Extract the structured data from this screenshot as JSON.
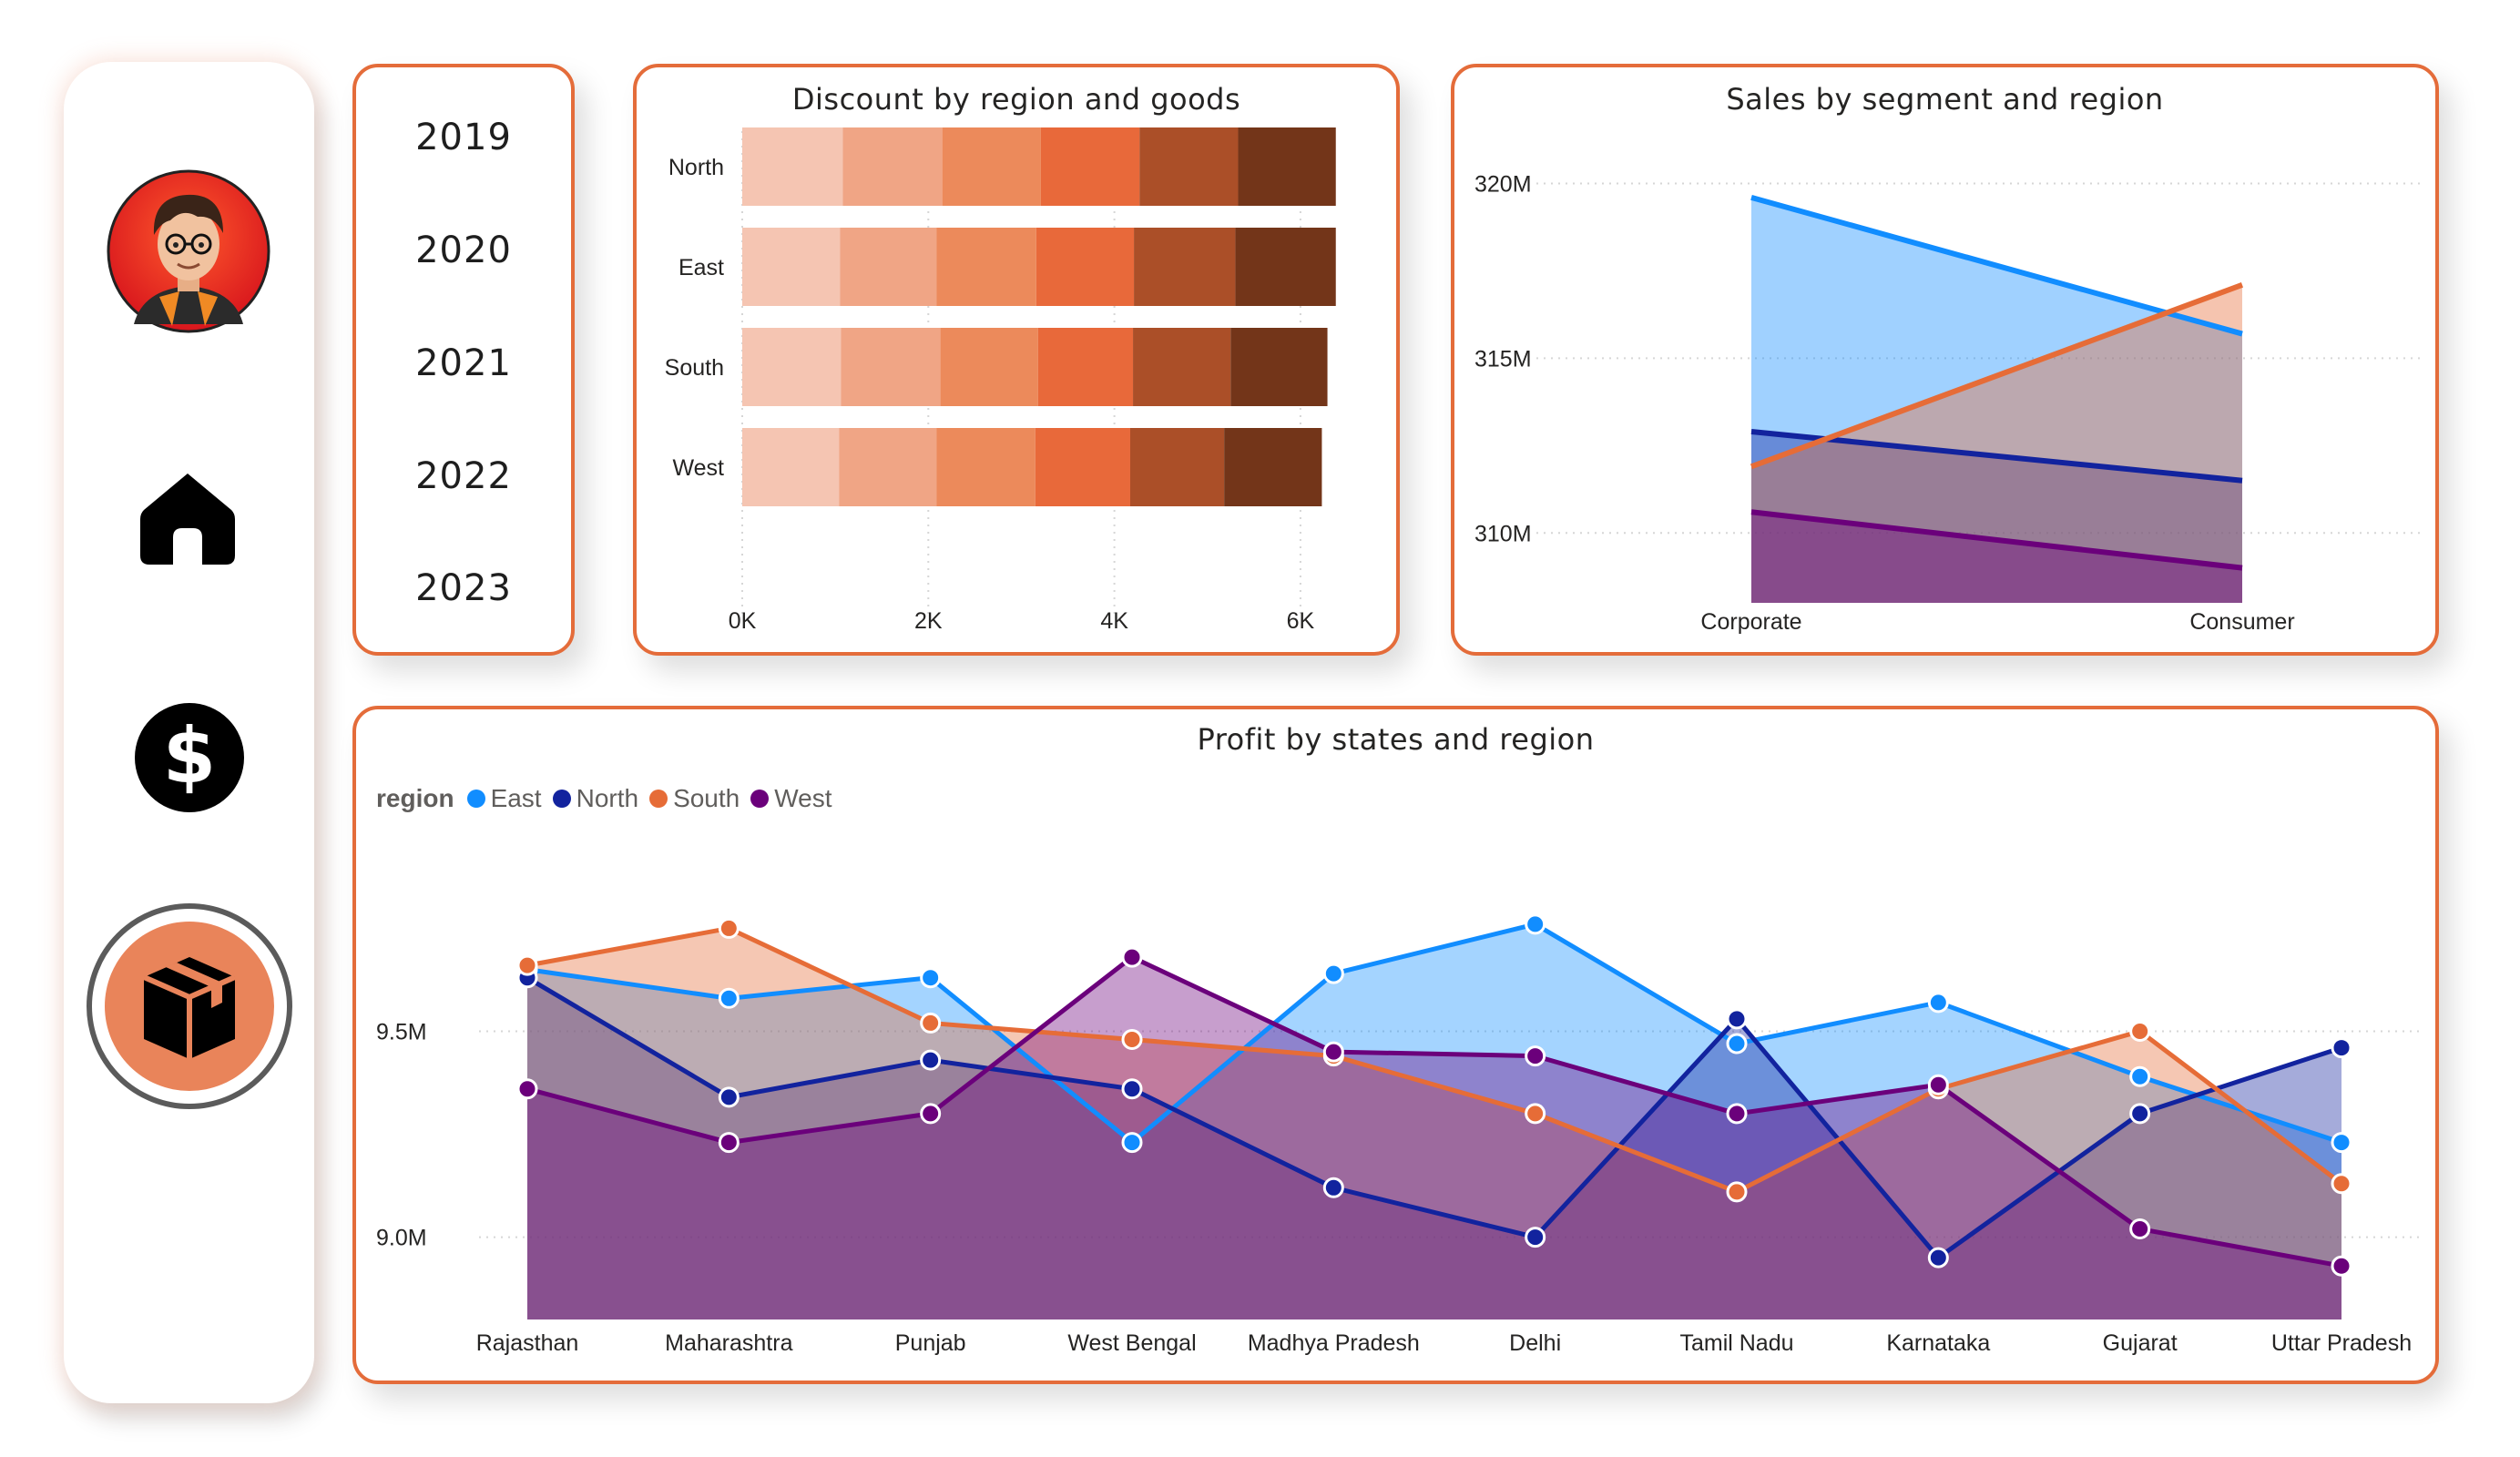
{
  "sidebar": {
    "items": [
      {
        "icon": "avatar"
      },
      {
        "icon": "home-icon"
      },
      {
        "icon": "dollar-icon"
      },
      {
        "icon": "box-icon"
      }
    ],
    "active_color": "#e9845a"
  },
  "years": [
    "2019",
    "2020",
    "2021",
    "2022",
    "2023"
  ],
  "colors": {
    "East": "#118dff",
    "North": "#12239e",
    "South": "#e66c37",
    "West": "#6b007b",
    "border": "#e46c3a"
  },
  "discount_chart": {
    "title": "Discount by region and goods",
    "chart_data": {
      "type": "bar",
      "stacked": true,
      "orientation": "horizontal",
      "categories": [
        "North",
        "East",
        "South",
        "West"
      ],
      "segment_colors": [
        "#f5c5b2",
        "#f0a585",
        "#ec8a5b",
        "#e8693a",
        "#ab4f28",
        "#733519"
      ],
      "segments": [
        [
          1080,
          1070,
          1060,
          1060,
          1060,
          1050
        ],
        [
          1050,
          1040,
          1070,
          1050,
          1090,
          1080
        ],
        [
          1060,
          1070,
          1050,
          1020,
          1050,
          1040
        ],
        [
          1040,
          1050,
          1060,
          1020,
          1010,
          1050
        ]
      ],
      "xlim": [
        0,
        6500
      ],
      "xticks": [
        "0K",
        "2K",
        "4K",
        "6K"
      ],
      "xtick_values": [
        0,
        2000,
        4000,
        6000
      ]
    }
  },
  "sales_chart": {
    "title": "Sales by segment and region",
    "chart_data": {
      "type": "area",
      "x": [
        "Corporate",
        "Consumer"
      ],
      "ylim": [
        308,
        321.5
      ],
      "yticks": [
        "310M",
        "315M",
        "320M"
      ],
      "ytick_values": [
        310,
        315,
        320
      ],
      "series": [
        {
          "name": "East",
          "values": [
            319.6,
            315.7
          ]
        },
        {
          "name": "North",
          "values": [
            312.9,
            311.5
          ]
        },
        {
          "name": "South",
          "values": [
            311.9,
            317.1
          ]
        },
        {
          "name": "West",
          "values": [
            310.6,
            309.0
          ]
        }
      ]
    }
  },
  "profit_chart": {
    "title": "Profit by states and region",
    "legend_title": "region",
    "chart_data": {
      "type": "area",
      "x": [
        "Rajasthan",
        "Maharashtra",
        "Punjab",
        "West Bengal",
        "Madhya Pradesh",
        "Delhi",
        "Tamil Nadu",
        "Karnataka",
        "Gujarat",
        "Uttar Pradesh"
      ],
      "ylim": [
        8.8,
        9.95
      ],
      "yticks": [
        "9.0M",
        "9.5M"
      ],
      "ytick_values": [
        9.0,
        9.5
      ],
      "series": [
        {
          "name": "East",
          "values": [
            9.65,
            9.58,
            9.63,
            9.23,
            9.64,
            9.76,
            9.47,
            9.57,
            9.39,
            9.23
          ]
        },
        {
          "name": "North",
          "values": [
            9.63,
            9.34,
            9.43,
            9.36,
            9.12,
            9.0,
            9.53,
            8.95,
            9.3,
            9.46
          ]
        },
        {
          "name": "South",
          "values": [
            9.66,
            9.75,
            9.52,
            9.48,
            9.44,
            9.3,
            9.11,
            9.36,
            9.5,
            9.13
          ]
        },
        {
          "name": "West",
          "values": [
            9.36,
            9.23,
            9.3,
            9.68,
            9.45,
            9.44,
            9.3,
            9.37,
            9.02,
            8.93
          ]
        }
      ]
    }
  }
}
